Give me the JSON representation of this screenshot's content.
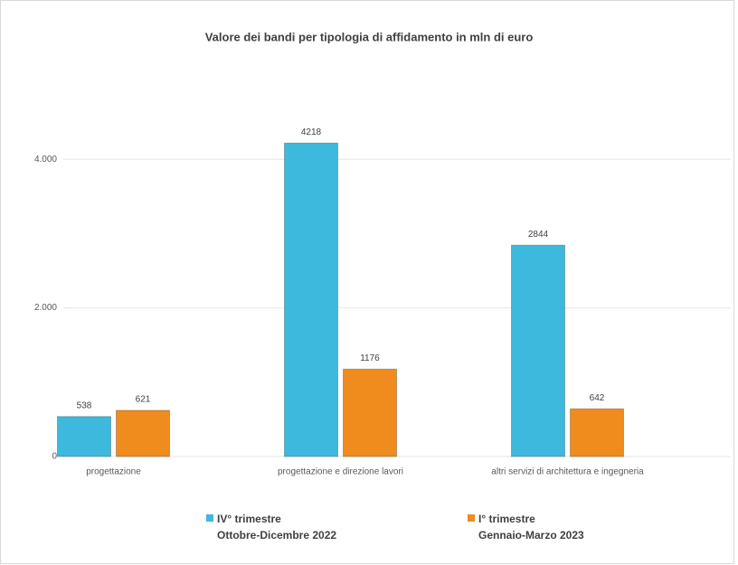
{
  "chart_data": {
    "type": "bar",
    "title": "Valore dei bandi per tipologia di affidamento in mln di euro",
    "categories": [
      "progettazione",
      "progettazione e direzione lavori",
      "altri servizi di architettura e ingegneria"
    ],
    "series": [
      {
        "name": "IV° trimestre\nOttobre-Dicembre 2022",
        "color": "#3db9dd",
        "values": [
          538,
          4218,
          2844
        ]
      },
      {
        "name": "I° trimestre\nGennaio-Marzo 2023",
        "color": "#f08b1e",
        "values": [
          621,
          1176,
          642
        ]
      }
    ],
    "ylim": [
      0,
      5000
    ],
    "yticks": [
      0,
      {
        "value": 2000,
        "label": "2.000"
      },
      {
        "value": 4000,
        "label": "4.000"
      }
    ],
    "grid": true,
    "legend": "bottom"
  }
}
